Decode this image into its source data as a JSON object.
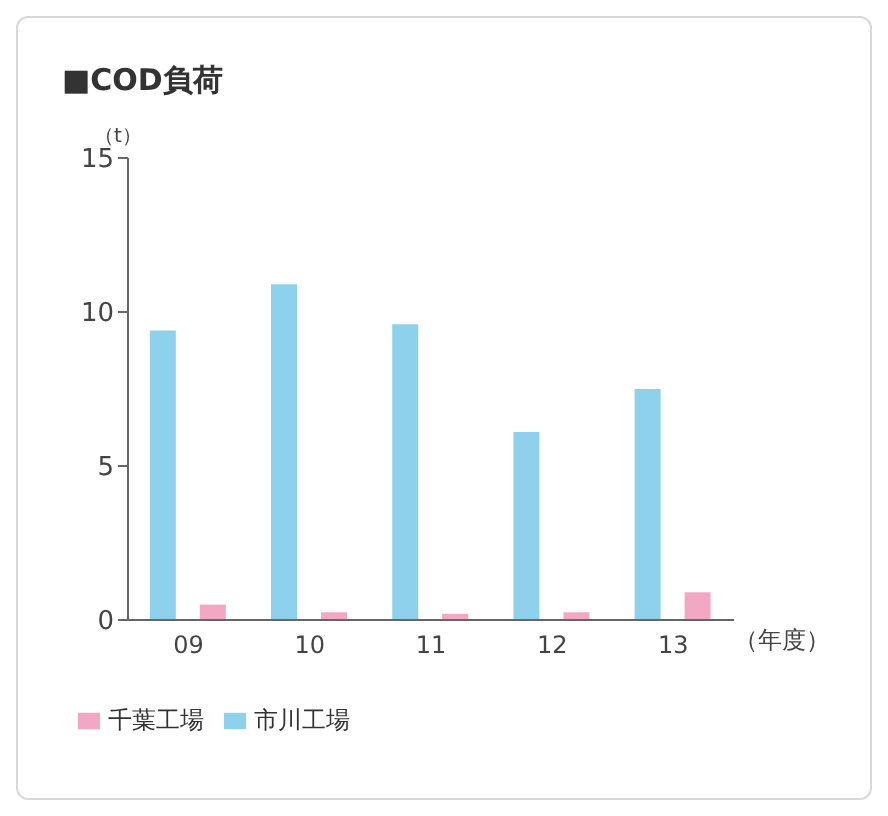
{
  "chart_data": {
    "type": "bar",
    "title": "■COD負荷",
    "ylabel": "（t）",
    "xlabel": "（年度）",
    "categories": [
      "09",
      "10",
      "11",
      "12",
      "13"
    ],
    "series": [
      {
        "name": "市川工場",
        "color": "#8ed1ec",
        "values": [
          9.4,
          10.9,
          9.6,
          6.1,
          7.5
        ]
      },
      {
        "name": "千葉工場",
        "color": "#f2a7c2",
        "values": [
          0.5,
          0.25,
          0.2,
          0.25,
          0.9
        ]
      }
    ],
    "ylim": [
      0,
      15
    ],
    "yticks": [
      0,
      5,
      10,
      15
    ],
    "grid": false,
    "legend": "bottom"
  }
}
